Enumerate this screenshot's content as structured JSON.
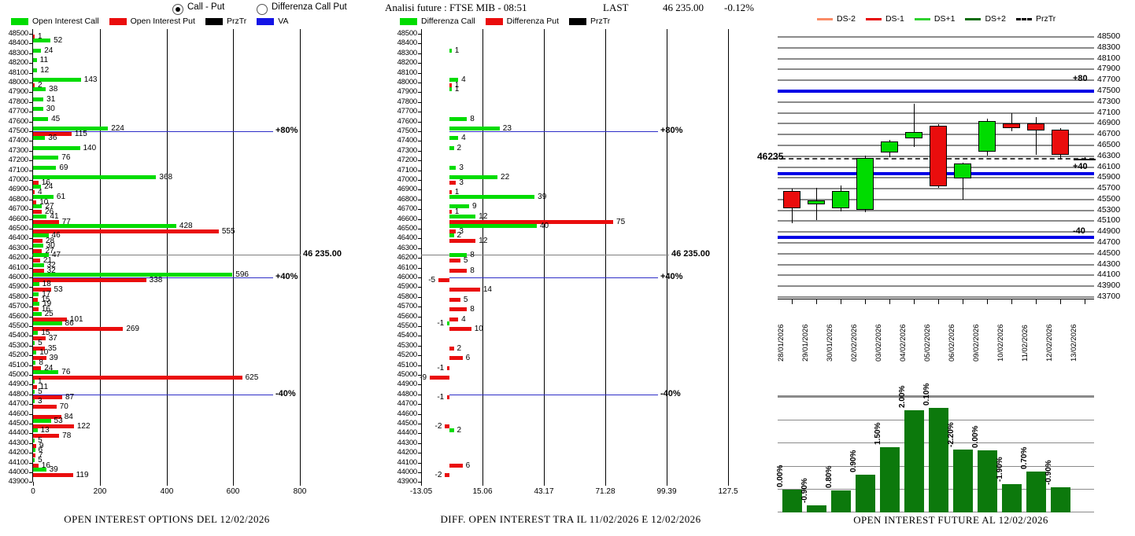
{
  "ui": {
    "radios": [
      {
        "label": "Call - Put",
        "selected": true
      },
      {
        "label": "Differenza Call Put",
        "selected": false
      }
    ],
    "header": {
      "analisi": "Analisi future : FTSE MIB - 08:51",
      "last_label": "LAST",
      "last_value": "46 235.00",
      "last_change": "-0.12%"
    },
    "left_legend": [
      {
        "label": "Open Interest Call",
        "color": "#00DC00"
      },
      {
        "label": "Open Interest Put",
        "color": "#EA0D0D"
      },
      {
        "label": "PrzTr",
        "color": "#000000"
      },
      {
        "label": "VA",
        "color": "#1414E6"
      }
    ],
    "mid_legend": [
      {
        "label": "Differenza Call",
        "color": "#00DC00"
      },
      {
        "label": "Differenza Put",
        "color": "#EA0D0D"
      },
      {
        "label": "PrzTr",
        "color": "#000000"
      }
    ],
    "right_legend": [
      {
        "label": "DS-2",
        "color": "#FA8B66",
        "style": "line"
      },
      {
        "label": "DS-1",
        "color": "#E60000",
        "style": "line"
      },
      {
        "label": "DS+1",
        "color": "#2FD12F",
        "style": "line"
      },
      {
        "label": "DS+2",
        "color": "#0A6B0A",
        "style": "line"
      },
      {
        "label": "PrzTr",
        "color": "#000000",
        "style": "dashed"
      }
    ],
    "colors": {
      "call_green": "#00DC00",
      "put_red": "#EA0D0D",
      "va_blue": "#2E2EC8",
      "prztr_gray": "#7F7F7F",
      "future_bar_green": "#0C790C",
      "right_blue": "#0000E6"
    }
  },
  "chart_data": [
    {
      "id": "oi_options",
      "type": "bar",
      "orientation": "horizontal",
      "title": "OPEN INTEREST OPTIONS DEL 12/02/2026",
      "series": [
        "Open Interest Call",
        "Open Interest Put"
      ],
      "x_ticks": [
        0,
        200,
        400,
        600,
        800
      ],
      "strikes": [
        48500,
        48400,
        48300,
        48200,
        48100,
        48000,
        47900,
        47800,
        47700,
        47600,
        47500,
        47400,
        47300,
        47200,
        47100,
        47000,
        46900,
        46800,
        46700,
        46600,
        46500,
        46400,
        46300,
        46200,
        46100,
        46000,
        45900,
        45800,
        45700,
        45600,
        45500,
        45400,
        45300,
        45200,
        45100,
        45000,
        44900,
        44800,
        44700,
        44600,
        44500,
        44400,
        44300,
        44200,
        44100,
        44000,
        43900
      ],
      "call": [
        null,
        52,
        24,
        11,
        12,
        143,
        38,
        31,
        30,
        45,
        224,
        36,
        140,
        76,
        69,
        368,
        24,
        61,
        27,
        41,
        428,
        46,
        30,
        47,
        32,
        596,
        18,
        17,
        19,
        25,
        86,
        15,
        5,
        10,
        8,
        76,
        1,
        5,
        3,
        null,
        53,
        13,
        5,
        6,
        5,
        39,
        null
      ],
      "put": [
        1,
        null,
        null,
        null,
        null,
        2,
        null,
        null,
        null,
        null,
        115,
        null,
        null,
        null,
        null,
        16,
        4,
        10,
        26,
        77,
        555,
        28,
        27,
        21,
        32,
        338,
        53,
        15,
        16,
        101,
        269,
        37,
        35,
        39,
        24,
        625,
        11,
        87,
        70,
        84,
        122,
        78,
        9,
        7,
        16,
        119,
        null
      ],
      "levels": [
        {
          "label": "+80%",
          "price": 47500,
          "kind": "va"
        },
        {
          "label": "46 235.00",
          "price": 46235,
          "kind": "prztr"
        },
        {
          "label": "+40%",
          "price": 46000,
          "kind": "va"
        },
        {
          "label": "-40%",
          "price": 44800,
          "kind": "va"
        }
      ]
    },
    {
      "id": "oi_diff",
      "type": "bar",
      "orientation": "horizontal",
      "title": "DIFF. OPEN INTEREST TRA IL 11/02/2026 E 12/02/2026",
      "series": [
        "Differenza Call",
        "Differenza Put"
      ],
      "x_ticks": [
        -13.05,
        15.06,
        43.17,
        71.28,
        99.39,
        127.5
      ],
      "strikes": [
        48500,
        48400,
        48300,
        48200,
        48100,
        48000,
        47900,
        47800,
        47700,
        47600,
        47500,
        47400,
        47300,
        47200,
        47100,
        47000,
        46900,
        46800,
        46700,
        46600,
        46500,
        46400,
        46300,
        46200,
        46100,
        46000,
        45900,
        45800,
        45700,
        45600,
        45500,
        45400,
        45300,
        45200,
        45100,
        45000,
        44900,
        44800,
        44700,
        44600,
        44500,
        44400,
        44300,
        44200,
        44100,
        44000,
        43900
      ],
      "call": [
        null,
        null,
        1,
        null,
        null,
        4,
        1,
        null,
        null,
        8,
        23,
        4,
        2,
        null,
        3,
        22,
        null,
        39,
        9,
        12,
        40,
        2,
        null,
        8,
        null,
        null,
        null,
        null,
        null,
        null,
        -1,
        null,
        null,
        null,
        null,
        null,
        null,
        null,
        null,
        null,
        null,
        2,
        null,
        null,
        null,
        null,
        null
      ],
      "put": [
        null,
        null,
        null,
        null,
        null,
        1,
        null,
        null,
        null,
        null,
        null,
        null,
        null,
        null,
        null,
        3,
        1,
        null,
        1,
        75,
        3,
        12,
        null,
        5,
        8,
        -5,
        14,
        5,
        8,
        4,
        10,
        null,
        2,
        6,
        -1,
        -9,
        null,
        -1,
        null,
        null,
        -2,
        null,
        null,
        null,
        6,
        -2,
        null
      ],
      "levels": [
        {
          "label": "+80%",
          "price": 47500,
          "kind": "va"
        },
        {
          "label": "46 235.00",
          "price": 46235,
          "kind": "prztr"
        },
        {
          "label": "+40%",
          "price": 46000,
          "kind": "va"
        },
        {
          "label": "-40%",
          "price": 44800,
          "kind": "va"
        }
      ]
    },
    {
      "id": "future_candles",
      "type": "candlestick",
      "dates": [
        "28/01/2026",
        "29/01/2026",
        "30/01/2026",
        "02/02/2026",
        "03/02/2026",
        "04/02/2026",
        "05/02/2026",
        "06/02/2026",
        "09/02/2026",
        "10/02/2026",
        "11/02/2026",
        "12/02/2026",
        "13/02/2026"
      ],
      "ohlc": [
        [
          45650,
          45680,
          45050,
          45330
        ],
        [
          45390,
          45700,
          45100,
          45470
        ],
        [
          45330,
          45740,
          45260,
          45650
        ],
        [
          45290,
          46290,
          45250,
          46250
        ],
        [
          46360,
          46590,
          46260,
          46560
        ],
        [
          46610,
          47260,
          46460,
          46730
        ],
        [
          46840,
          46880,
          45700,
          45730
        ],
        [
          45880,
          46170,
          45490,
          46150
        ],
        [
          46365,
          46975,
          46295,
          46935
        ],
        [
          46890,
          47075,
          46750,
          46810
        ],
        [
          46890,
          47005,
          46310,
          46760
        ],
        [
          46775,
          46800,
          46230,
          46310
        ],
        [
          46255,
          46270,
          46235,
          46245
        ]
      ],
      "directions": [
        "down",
        "up",
        "up",
        "up",
        "up",
        "up",
        "down",
        "up",
        "up",
        "down",
        "down",
        "down",
        "doji"
      ],
      "y_ticks": [
        48500,
        48300,
        48100,
        47900,
        47700,
        47500,
        47300,
        47100,
        46900,
        46700,
        46500,
        46300,
        46100,
        45900,
        45700,
        45500,
        45300,
        45100,
        44900,
        44700,
        44500,
        44300,
        44100,
        43900,
        43700
      ],
      "price_label": "46235",
      "prztr_price": 46235,
      "va_lines": [
        {
          "price": 47500,
          "label": "+80"
        },
        {
          "price": 45980,
          "label": "+40"
        },
        {
          "price": 44800,
          "label": "-40"
        }
      ]
    },
    {
      "id": "oi_future",
      "type": "bar",
      "title": "OPEN INTEREST FUTURE AL 12/02/2026",
      "categories": [
        "28/01/2026",
        "29/01/2026",
        "30/01/2026",
        "02/02/2026",
        "03/02/2026",
        "04/02/2026",
        "05/02/2026",
        "06/02/2026",
        "09/02/2026",
        "10/02/2026",
        "11/02/2026",
        "12/02/2026"
      ],
      "pct_labels": [
        "0.00%",
        "-0.90%",
        "0.80%",
        "0.90%",
        "1.50%",
        "2.00%",
        "0.10%",
        "-2.20%",
        "0.00%",
        "-1.90%",
        "0.70%",
        "-0.90%"
      ],
      "relative_heights": [
        29,
        9,
        28,
        48,
        83,
        130,
        133,
        80,
        79,
        36,
        52,
        32
      ]
    }
  ]
}
